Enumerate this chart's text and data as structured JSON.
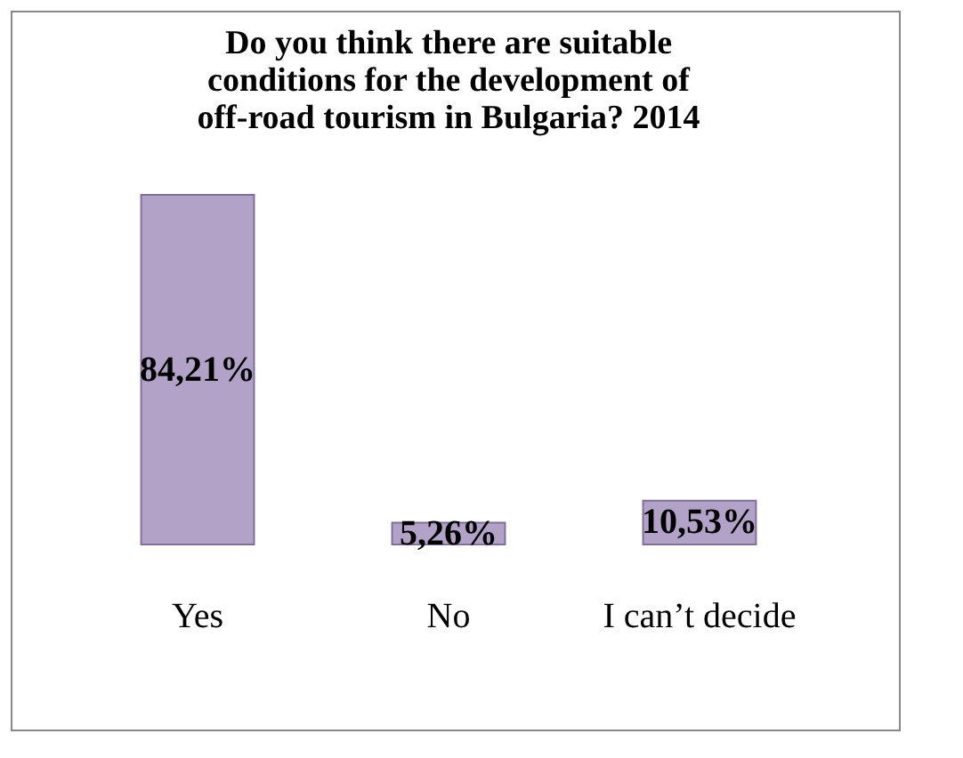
{
  "chart_data": {
    "type": "bar",
    "title": "Do you think there are suitable conditions for the development of off-road tourism in Bulgaria? 2014",
    "categories": [
      "Yes",
      "No",
      "I can’t decide"
    ],
    "values": [
      84.21,
      5.26,
      10.53
    ],
    "value_labels": [
      "84,21%",
      "5,26%",
      "10,53%"
    ],
    "color": "#b3a2c7"
  }
}
